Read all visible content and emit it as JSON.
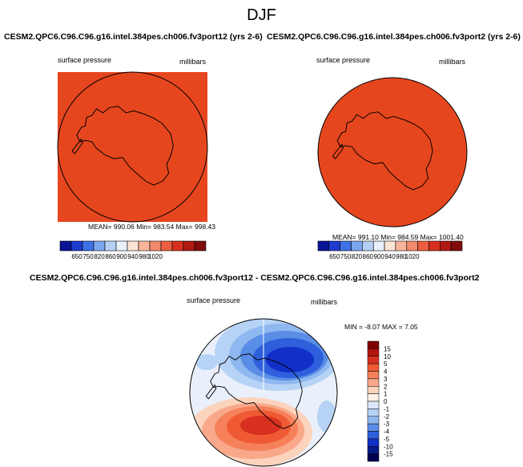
{
  "page": {
    "title": "DJF"
  },
  "panels": [
    {
      "case_title": "CESM2.QPC6.C96.C96.g16.intel.384pes.ch006.fv3port12 (yrs 2-6)",
      "variable": "surface pressure",
      "units": "millibars",
      "fill_color": "#e6461e",
      "stats": {
        "mean": "990.06",
        "min": "983.54",
        "max": "998.43"
      },
      "stats_text": "MEAN= 990.06  Min= 983.54  Max= 998.43"
    },
    {
      "case_title": "CESM2.QPC6.C96.C96.g16.intel.384pes.ch006.fv3port2 (yrs 2-6)",
      "variable": "surface pressure",
      "units": "millibars",
      "fill_color": "#e6461e",
      "stats": {
        "mean": "991.10",
        "min": "984.59",
        "max": "1001.40"
      },
      "stats_text": "MEAN= 991.10  Min= 984.59  Max= 1001.40"
    }
  ],
  "horizontal_colorbar": {
    "colors": [
      "#0a1496",
      "#1f3bd0",
      "#3e70e6",
      "#7aa6f0",
      "#b6d0f5",
      "#e8f0fb",
      "#fbe3d5",
      "#f8b59a",
      "#f28a6b",
      "#ec5e3f",
      "#d7301f",
      "#b01a12",
      "#7f0e0a"
    ],
    "tick_labels": [
      "650",
      "750",
      "820",
      "860",
      "900",
      "940",
      "980",
      "1020"
    ]
  },
  "difference": {
    "title": "CESM2.QPC6.C96.C96.g16.intel.384pes.ch006.fv3port12 - CESM2.QPC6.C96.C96.g16.intel.384pes.ch006.fv3port2",
    "variable": "surface pressure",
    "units": "millibars",
    "stats": {
      "min": "-8.07",
      "max": "7.05"
    },
    "stats_text": "MIN =  -8.07 MAX =  7.05",
    "colorbar": {
      "levels": [
        "15",
        "10",
        "5",
        "4",
        "3",
        "2",
        "1",
        "0",
        "-1",
        "-2",
        "-3",
        "-4",
        "-5",
        "-10",
        "-15"
      ],
      "colors": [
        "#7f0000",
        "#b3150f",
        "#d73020",
        "#ef5a35",
        "#f5805a",
        "#f9a88a",
        "#fcd3bd",
        "#fff2e8",
        "#dbe8fb",
        "#b6d3f6",
        "#8fb8f0",
        "#5a8ee6",
        "#2f5fdc",
        "#1230c8",
        "#061a8a",
        "#000050"
      ]
    }
  }
}
